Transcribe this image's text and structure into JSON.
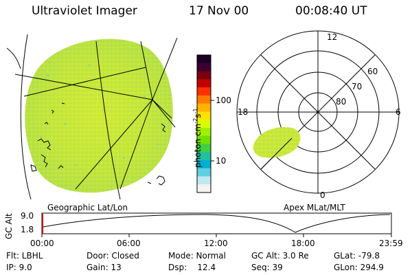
{
  "header": {
    "instrument": "Ultraviolet Imager",
    "date": "17 Nov 00",
    "time": "00:08:40 UT"
  },
  "colorbar": {
    "unit_label": "photon cm",
    "unit_exp1": "-2",
    "unit_s": "s",
    "unit_exp2": "-1",
    "tick_100": "100",
    "tick_10": "10",
    "colors": [
      "#1a0025",
      "#3b0030",
      "#7a0010",
      "#c00000",
      "#ff3000",
      "#ff7a00",
      "#ffb400",
      "#ffe000",
      "#d8ff00",
      "#a0f000",
      "#70e000",
      "#40d040",
      "#20c0a0",
      "#00b0d0",
      "#60d0e0",
      "#c0e8f0",
      "#f4f4f4"
    ]
  },
  "polar": {
    "mlt_12": "12",
    "mlt_18": "18",
    "mlt_6": "6",
    "mlt_0": "0",
    "lat_60": "60",
    "lat_70": "70",
    "lat_80": "80"
  },
  "labels": {
    "geo": "Geographic Lat/Lon",
    "apex": "Apex MLat/MLT"
  },
  "altitude_panel": {
    "axis_label": "GC Alt",
    "ymax": "9.0",
    "ymin": "1.8",
    "times": [
      "00:00",
      "06:00",
      "12:00",
      "18:00",
      "23:59"
    ]
  },
  "footer": {
    "flt": "Flt: LBHL",
    "ip": "IP:  9.0",
    "door": "Door: Closed",
    "gain": "Gain: 13",
    "mode": "Mode: Normal",
    "dsp": "Dsp:    12.4",
    "gcalt": "GC Alt: 3.0 Re",
    "seq": "Seq: 39",
    "glat": "GLat: -79.8",
    "glon": "GLon: 294.9"
  }
}
